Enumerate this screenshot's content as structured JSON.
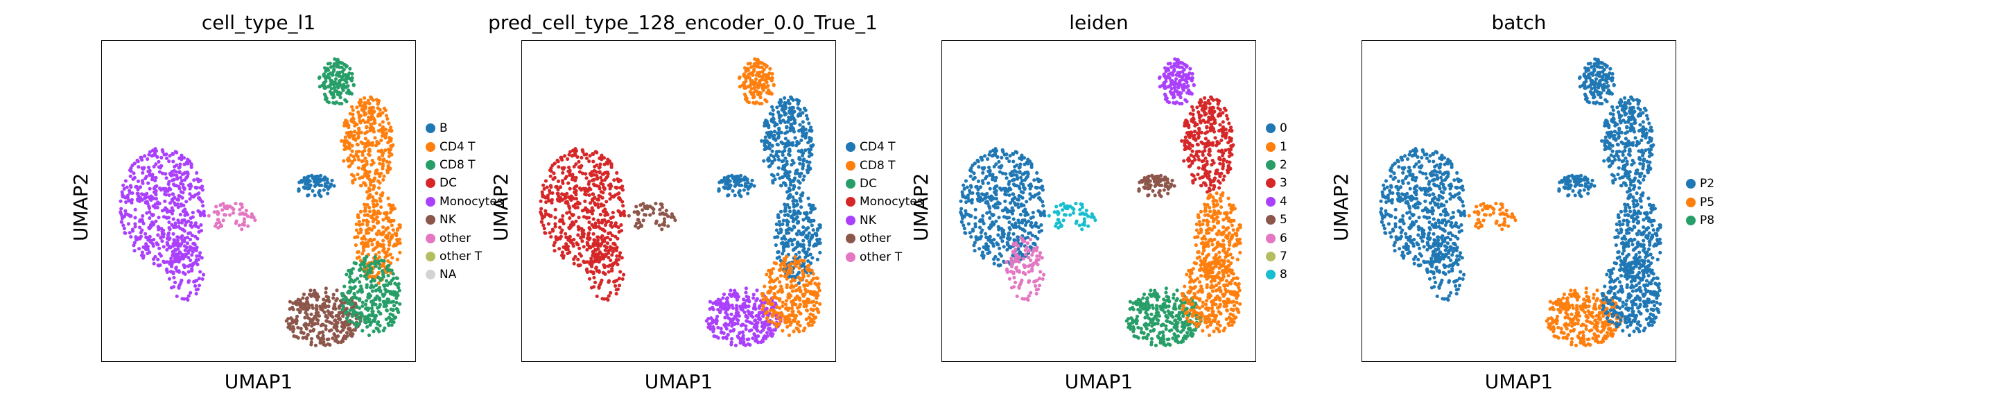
{
  "chart_data": [
    {
      "type": "scatter",
      "title": "cell_type_l1",
      "xlabel": "UMAP1",
      "ylabel": "UMAP2",
      "grid": false,
      "legend_position": "right",
      "legend": [
        {
          "label": "B",
          "color": "#1f77b4"
        },
        {
          "label": "CD4 T",
          "color": "#ff7f0e"
        },
        {
          "label": "CD8 T",
          "color": "#279e68"
        },
        {
          "label": "DC",
          "color": "#d62728"
        },
        {
          "label": "Monocytes",
          "color": "#aa40fc"
        },
        {
          "label": "NK",
          "color": "#8c564b"
        },
        {
          "label": "other",
          "color": "#e377c2"
        },
        {
          "label": "other T",
          "color": "#b5bd61"
        },
        {
          "label": "NA",
          "color": "#d3d3d3"
        }
      ],
      "clusters": [
        {
          "region": "left-mass",
          "category": "Monocytes"
        },
        {
          "region": "left-tail",
          "category": "Monocytes"
        },
        {
          "region": "left-small",
          "category": "other"
        },
        {
          "region": "mid-blob",
          "category": "B"
        },
        {
          "region": "top-right",
          "category": "CD8 T"
        },
        {
          "region": "right-upper",
          "category": "CD4 T"
        },
        {
          "region": "right-mid",
          "category": "CD4 T"
        },
        {
          "region": "bottom-left-lobe",
          "category": "NK"
        },
        {
          "region": "bottom-right-lobe",
          "category": "CD8 T"
        }
      ]
    },
    {
      "type": "scatter",
      "title": "pred_cell_type_128_encoder_0.0_True_1",
      "xlabel": "UMAP1",
      "ylabel": "UMAP2",
      "grid": false,
      "legend_position": "right",
      "legend": [
        {
          "label": "CD4 T",
          "color": "#1f77b4"
        },
        {
          "label": "CD8 T",
          "color": "#ff7f0e"
        },
        {
          "label": "DC",
          "color": "#279e68"
        },
        {
          "label": "Monocytes",
          "color": "#d62728"
        },
        {
          "label": "NK",
          "color": "#aa40fc"
        },
        {
          "label": "other",
          "color": "#8c564b"
        },
        {
          "label": "other T",
          "color": "#e377c2"
        }
      ],
      "clusters": [
        {
          "region": "left-mass",
          "category": "Monocytes"
        },
        {
          "region": "left-tail",
          "category": "Monocytes"
        },
        {
          "region": "left-small",
          "category": "other"
        },
        {
          "region": "mid-blob",
          "category": "CD4 T"
        },
        {
          "region": "top-right",
          "category": "CD8 T"
        },
        {
          "region": "right-upper",
          "category": "CD4 T"
        },
        {
          "region": "right-mid",
          "category": "CD4 T"
        },
        {
          "region": "bottom-left-lobe",
          "category": "NK"
        },
        {
          "region": "bottom-right-lobe",
          "category": "CD8 T"
        }
      ]
    },
    {
      "type": "scatter",
      "title": "leiden",
      "xlabel": "UMAP1",
      "ylabel": "UMAP2",
      "grid": false,
      "legend_position": "right",
      "legend": [
        {
          "label": "0",
          "color": "#1f77b4"
        },
        {
          "label": "1",
          "color": "#ff7f0e"
        },
        {
          "label": "2",
          "color": "#279e68"
        },
        {
          "label": "3",
          "color": "#d62728"
        },
        {
          "label": "4",
          "color": "#aa40fc"
        },
        {
          "label": "5",
          "color": "#8c564b"
        },
        {
          "label": "6",
          "color": "#e377c2"
        },
        {
          "label": "7",
          "color": "#b5bd61"
        },
        {
          "label": "8",
          "color": "#17becf"
        }
      ],
      "clusters": [
        {
          "region": "left-mass",
          "category": "0"
        },
        {
          "region": "left-tail",
          "category": "6"
        },
        {
          "region": "left-small",
          "category": "8"
        },
        {
          "region": "mid-blob",
          "category": "5"
        },
        {
          "region": "top-right",
          "category": "4"
        },
        {
          "region": "right-upper",
          "category": "3"
        },
        {
          "region": "right-mid",
          "category": "1"
        },
        {
          "region": "bottom-left-lobe",
          "category": "2"
        },
        {
          "region": "bottom-right-lobe",
          "category": "1"
        }
      ]
    },
    {
      "type": "scatter",
      "title": "batch",
      "xlabel": "UMAP1",
      "ylabel": "UMAP2",
      "grid": false,
      "legend_position": "right",
      "legend": [
        {
          "label": "P2",
          "color": "#1f77b4"
        },
        {
          "label": "P5",
          "color": "#ff7f0e"
        },
        {
          "label": "P8",
          "color": "#279e68"
        }
      ],
      "clusters": [
        {
          "region": "left-mass",
          "category": "P2"
        },
        {
          "region": "left-tail",
          "category": "P2"
        },
        {
          "region": "left-small",
          "category": "P5"
        },
        {
          "region": "mid-blob",
          "category": "P2"
        },
        {
          "region": "top-right",
          "category": "P2"
        },
        {
          "region": "right-upper",
          "category": "P2"
        },
        {
          "region": "right-mid",
          "category": "P2"
        },
        {
          "region": "bottom-left-lobe",
          "category": "P5"
        },
        {
          "region": "bottom-right-lobe",
          "category": "P2"
        }
      ]
    }
  ]
}
